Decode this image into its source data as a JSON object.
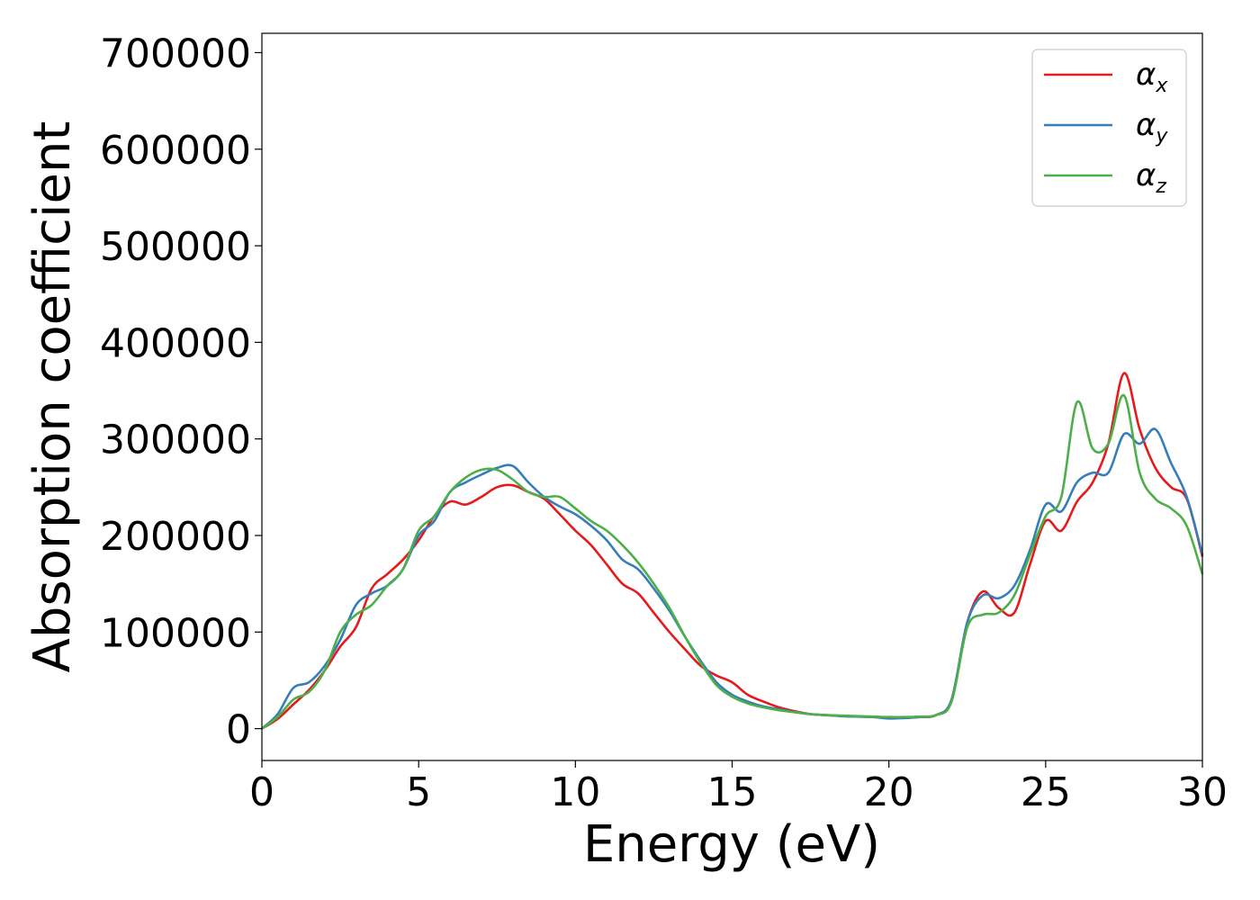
{
  "chart_data": {
    "type": "line",
    "xlabel": "Energy (eV)",
    "ylabel": "Absorption coefficient",
    "xlim": [
      0,
      30
    ],
    "ylim": [
      -33000,
      720000
    ],
    "x_ticks": [
      0,
      5,
      10,
      15,
      20,
      25,
      30
    ],
    "y_ticks": [
      0,
      100000,
      200000,
      300000,
      400000,
      500000,
      600000,
      700000
    ],
    "grid": false,
    "legend_position": "top-right",
    "x": [
      0,
      0.5,
      1,
      1.5,
      2,
      2.5,
      3,
      3.5,
      4,
      4.5,
      5,
      5.5,
      6,
      6.5,
      7,
      7.5,
      8,
      8.5,
      9,
      9.5,
      10,
      10.5,
      11,
      11.5,
      12,
      12.5,
      13,
      13.5,
      14,
      14.5,
      15,
      15.5,
      16,
      16.5,
      17,
      17.5,
      18,
      18.5,
      19,
      19.5,
      20,
      20.5,
      21,
      21.5,
      22,
      22.5,
      23,
      23.5,
      24,
      24.5,
      25,
      25.5,
      26,
      26.5,
      27,
      27.5,
      28,
      28.5,
      29,
      29.5,
      30
    ],
    "series": [
      {
        "name": "α",
        "subscript": "x",
        "color": "#e41a1c",
        "values": [
          0,
          10000,
          25000,
          40000,
          60000,
          85000,
          105000,
          145000,
          160000,
          175000,
          195000,
          220000,
          235000,
          232000,
          240000,
          250000,
          252000,
          245000,
          238000,
          222000,
          205000,
          190000,
          170000,
          150000,
          140000,
          120000,
          100000,
          82000,
          65000,
          55000,
          48000,
          35000,
          28000,
          22000,
          18000,
          15000,
          14000,
          13000,
          12500,
          12000,
          11500,
          11500,
          12000,
          14000,
          30000,
          110000,
          142000,
          125000,
          120000,
          170000,
          215000,
          205000,
          235000,
          255000,
          295000,
          368000,
          310000,
          270000,
          250000,
          238000,
          178000
        ]
      },
      {
        "name": "α",
        "subscript": "y",
        "color": "#377eb8",
        "values": [
          0,
          15000,
          42000,
          48000,
          65000,
          92000,
          128000,
          140000,
          148000,
          165000,
          200000,
          215000,
          245000,
          255000,
          263000,
          270000,
          272000,
          255000,
          240000,
          230000,
          222000,
          210000,
          195000,
          175000,
          165000,
          145000,
          122000,
          95000,
          70000,
          48000,
          35000,
          28000,
          23000,
          20000,
          17000,
          15000,
          14000,
          13000,
          12500,
          12000,
          10500,
          11000,
          12000,
          14000,
          30000,
          110000,
          138000,
          135000,
          148000,
          185000,
          232000,
          225000,
          255000,
          265000,
          265000,
          305000,
          295000,
          310000,
          275000,
          240000,
          180000
        ]
      },
      {
        "name": "α",
        "subscript": "z",
        "color": "#4daf4a",
        "values": [
          0,
          12000,
          30000,
          38000,
          60000,
          100000,
          118000,
          128000,
          148000,
          165000,
          205000,
          220000,
          245000,
          260000,
          268000,
          268000,
          258000,
          245000,
          240000,
          240000,
          228000,
          215000,
          205000,
          190000,
          172000,
          150000,
          125000,
          95000,
          68000,
          45000,
          33000,
          26000,
          22000,
          19000,
          17000,
          15000,
          14000,
          13500,
          13000,
          12500,
          12000,
          12000,
          12500,
          14000,
          28000,
          105000,
          118000,
          120000,
          138000,
          180000,
          220000,
          240000,
          338000,
          290000,
          295000,
          345000,
          265000,
          238000,
          228000,
          210000,
          160000
        ]
      }
    ]
  }
}
